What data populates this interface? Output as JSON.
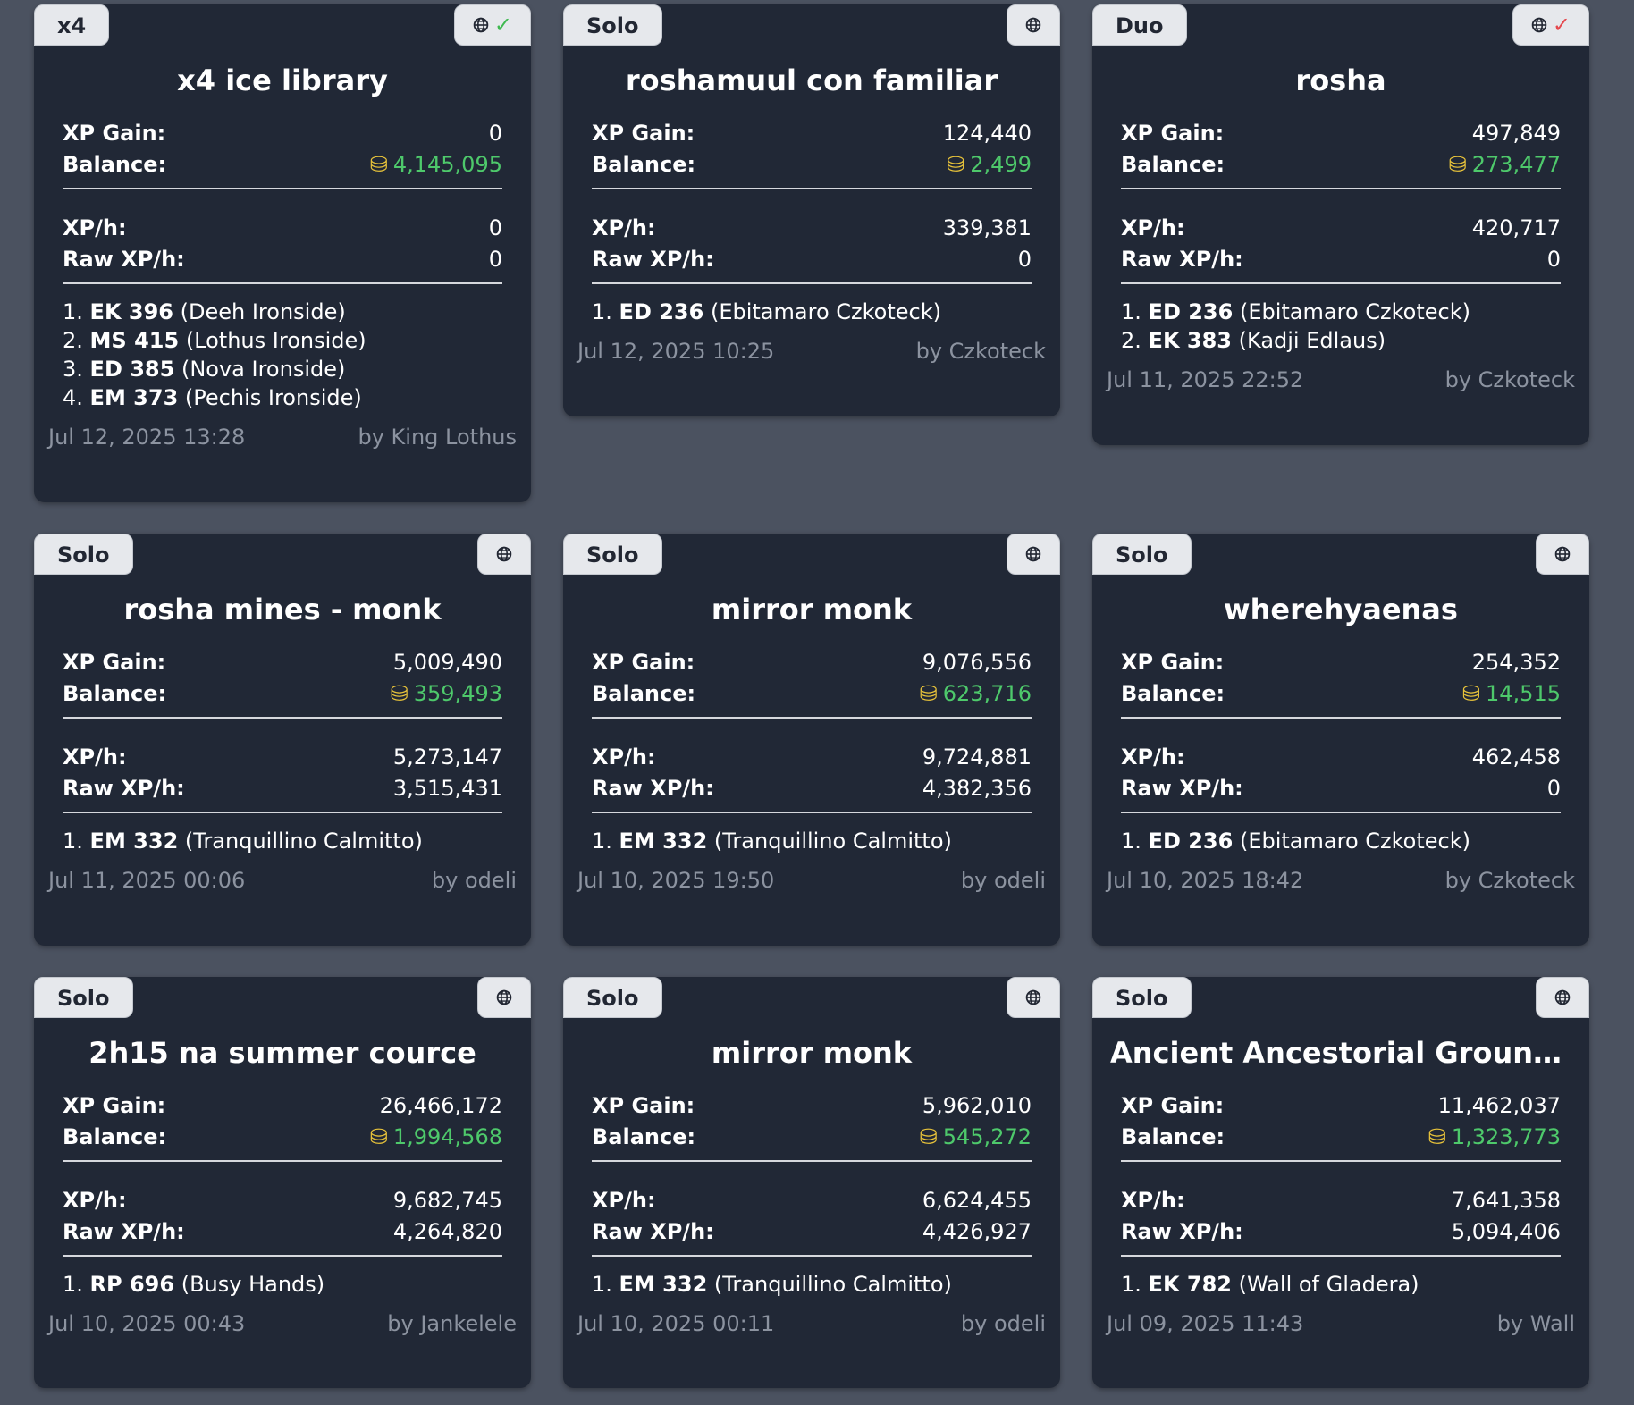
{
  "cards": [
    {
      "tag": "x4",
      "verified": "check",
      "title": "x4 ice library",
      "xp_gain_label": "XP Gain:",
      "xp_gain": "0",
      "balance_label": "Balance:",
      "balance": "4,145,095",
      "xph_label": "XP/h:",
      "xph": "0",
      "raw_label": "Raw XP/h:",
      "raw": "0",
      "ranks": [
        {
          "num": "1.",
          "code": "EK 396",
          "name": "(Deeh Ironside)"
        },
        {
          "num": "2.",
          "code": "MS 415",
          "name": "(Lothus Ironside)"
        },
        {
          "num": "3.",
          "code": "ED 385",
          "name": "(Nova Ironside)"
        },
        {
          "num": "4.",
          "code": "EM 373",
          "name": "(Pechis Ironside)"
        }
      ],
      "date": "Jul 12, 2025 13:28",
      "author": "by King Lothus"
    },
    {
      "tag": "Solo",
      "verified": "",
      "title": "roshamuul con familiar",
      "xp_gain_label": "XP Gain:",
      "xp_gain": "124,440",
      "balance_label": "Balance:",
      "balance": "2,499",
      "xph_label": "XP/h:",
      "xph": "339,381",
      "raw_label": "Raw XP/h:",
      "raw": "0",
      "ranks": [
        {
          "num": "1.",
          "code": "ED 236",
          "name": "(Ebitamaro Czkoteck)"
        }
      ],
      "date": "Jul 12, 2025 10:25",
      "author": "by Czkoteck"
    },
    {
      "tag": "Duo",
      "verified": "cross",
      "title": "rosha",
      "xp_gain_label": "XP Gain:",
      "xp_gain": "497,849",
      "balance_label": "Balance:",
      "balance": "273,477",
      "xph_label": "XP/h:",
      "xph": "420,717",
      "raw_label": "Raw XP/h:",
      "raw": "0",
      "ranks": [
        {
          "num": "1.",
          "code": "ED 236",
          "name": "(Ebitamaro Czkoteck)"
        },
        {
          "num": "2.",
          "code": "EK 383",
          "name": "(Kadji Edlaus)"
        }
      ],
      "date": "Jul 11, 2025 22:52",
      "author": "by Czkoteck"
    },
    {
      "tag": "Solo",
      "verified": "",
      "title": "rosha mines - monk",
      "xp_gain_label": "XP Gain:",
      "xp_gain": "5,009,490",
      "balance_label": "Balance:",
      "balance": "359,493",
      "xph_label": "XP/h:",
      "xph": "5,273,147",
      "raw_label": "Raw XP/h:",
      "raw": "3,515,431",
      "ranks": [
        {
          "num": "1.",
          "code": "EM 332",
          "name": "(Tranquillino Calmitto)"
        }
      ],
      "date": "Jul 11, 2025 00:06",
      "author": "by odeli"
    },
    {
      "tag": "Solo",
      "verified": "",
      "title": "mirror monk",
      "xp_gain_label": "XP Gain:",
      "xp_gain": "9,076,556",
      "balance_label": "Balance:",
      "balance": "623,716",
      "xph_label": "XP/h:",
      "xph": "9,724,881",
      "raw_label": "Raw XP/h:",
      "raw": "4,382,356",
      "ranks": [
        {
          "num": "1.",
          "code": "EM 332",
          "name": "(Tranquillino Calmitto)"
        }
      ],
      "date": "Jul 10, 2025 19:50",
      "author": "by odeli"
    },
    {
      "tag": "Solo",
      "verified": "",
      "title": "wherehyaenas",
      "xp_gain_label": "XP Gain:",
      "xp_gain": "254,352",
      "balance_label": "Balance:",
      "balance": "14,515",
      "xph_label": "XP/h:",
      "xph": "462,458",
      "raw_label": "Raw XP/h:",
      "raw": "0",
      "ranks": [
        {
          "num": "1.",
          "code": "ED 236",
          "name": "(Ebitamaro Czkoteck)"
        }
      ],
      "date": "Jul 10, 2025 18:42",
      "author": "by Czkoteck"
    },
    {
      "tag": "Solo",
      "verified": "",
      "title": "2h15 na summer cource",
      "xp_gain_label": "XP Gain:",
      "xp_gain": "26,466,172",
      "balance_label": "Balance:",
      "balance": "1,994,568",
      "xph_label": "XP/h:",
      "xph": "9,682,745",
      "raw_label": "Raw XP/h:",
      "raw": "4,264,820",
      "ranks": [
        {
          "num": "1.",
          "code": "RP 696",
          "name": "(Busy Hands)"
        }
      ],
      "date": "Jul 10, 2025 00:43",
      "author": "by Jankelele"
    },
    {
      "tag": "Solo",
      "verified": "",
      "title": "mirror monk",
      "xp_gain_label": "XP Gain:",
      "xp_gain": "5,962,010",
      "balance_label": "Balance:",
      "balance": "545,272",
      "xph_label": "XP/h:",
      "xph": "6,624,455",
      "raw_label": "Raw XP/h:",
      "raw": "4,426,927",
      "ranks": [
        {
          "num": "1.",
          "code": "EM 332",
          "name": "(Tranquillino Calmitto)"
        }
      ],
      "date": "Jul 10, 2025 00:11",
      "author": "by odeli"
    },
    {
      "tag": "Solo",
      "verified": "",
      "title": "Ancient Ancestorial Grounds...",
      "xp_gain_label": "XP Gain:",
      "xp_gain": "11,462,037",
      "balance_label": "Balance:",
      "balance": "1,323,773",
      "xph_label": "XP/h:",
      "xph": "7,641,358",
      "raw_label": "Raw XP/h:",
      "raw": "5,094,406",
      "ranks": [
        {
          "num": "1.",
          "code": "EK 782",
          "name": "(Wall of Gladera)"
        }
      ],
      "date": "Jul 09, 2025 11:43",
      "author": "by Wall"
    }
  ],
  "icons": {
    "globe": "globe-icon",
    "coin": "gold-coins-icon",
    "check": "checkmark-icon",
    "cross": "cross-mark-icon"
  },
  "colors": {
    "background": "#4b5260",
    "card": "#212836",
    "balance_green": "#4ec96b",
    "coin_gold": "#e8c33a",
    "check_green": "#3fb950",
    "cross_red": "#e5484d"
  }
}
